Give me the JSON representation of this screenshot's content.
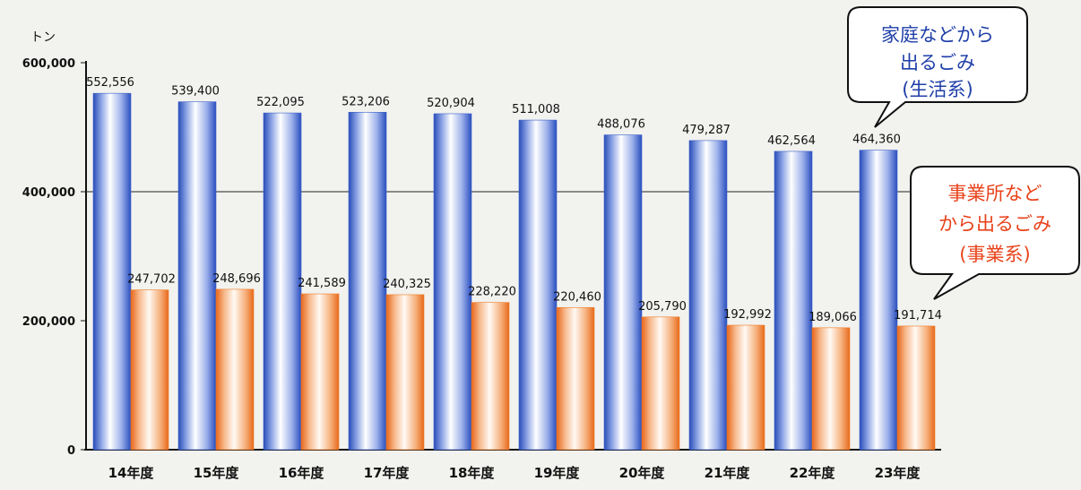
{
  "chart_data": {
    "type": "bar",
    "yunit": "トン",
    "ylim": [
      0,
      600000
    ],
    "yticks": [
      "0",
      "200,000",
      "400,000",
      "600,000"
    ],
    "yticks_values": [
      0,
      200000,
      400000,
      600000
    ],
    "gridline_at": 400000,
    "categories": [
      "14年度",
      "15年度",
      "16年度",
      "17年度",
      "18年度",
      "19年度",
      "20年度",
      "21年度",
      "22年度",
      "23年度"
    ],
    "series": [
      {
        "key": "household",
        "color": "#3a5fc8",
        "values": [
          552556,
          539400,
          522095,
          523206,
          520904,
          511008,
          488076,
          479287,
          462564,
          464360
        ],
        "labels": [
          "552,556",
          "539,400",
          "522,095",
          "523,206",
          "520,904",
          "511,008",
          "488,076",
          "479,287",
          "462,564",
          "464,360"
        ]
      },
      {
        "key": "business",
        "color": "#ef7a22",
        "values": [
          247702,
          248696,
          241589,
          240325,
          228220,
          220460,
          205790,
          192992,
          189066,
          191714
        ],
        "labels": [
          "247,702",
          "248,696",
          "241,589",
          "240,325",
          "228,220",
          "220,460",
          "205,790",
          "192,992",
          "189,066",
          "191,714"
        ]
      }
    ],
    "callouts": [
      {
        "lines": [
          "家庭などから",
          "出るごみ",
          "(生活系)"
        ],
        "color": "#1f3fa8"
      },
      {
        "lines": [
          "事業所など",
          "から出るごみ",
          "(事業系)"
        ],
        "color": "#e8421a"
      }
    ]
  }
}
